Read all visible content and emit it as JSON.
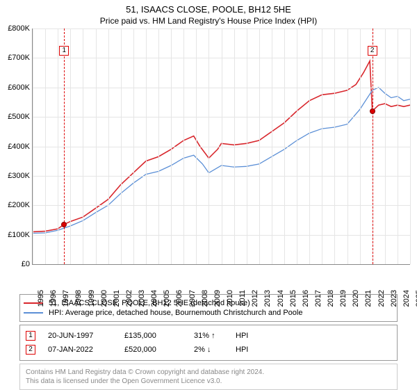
{
  "title": "51, ISAACS CLOSE, POOLE, BH12 5HE",
  "subtitle": "Price paid vs. HM Land Registry's House Price Index (HPI)",
  "chart": {
    "type": "line",
    "background_color": "#ffffff",
    "grid_color": "#e5e5e5",
    "axis_color": "#888888",
    "ylim": [
      0,
      800000
    ],
    "ytick_step": 100000,
    "yticks": [
      "£0",
      "£100K",
      "£200K",
      "£300K",
      "£400K",
      "£500K",
      "£600K",
      "£700K",
      "£800K"
    ],
    "xlim": [
      1995,
      2025
    ],
    "xticks": [
      1995,
      1996,
      1997,
      1998,
      1999,
      2000,
      2001,
      2002,
      2003,
      2004,
      2005,
      2006,
      2007,
      2008,
      2009,
      2010,
      2011,
      2012,
      2013,
      2014,
      2015,
      2016,
      2017,
      2018,
      2019,
      2020,
      2021,
      2022,
      2023,
      2024,
      2025
    ],
    "series": [
      {
        "name": "51, ISAACS CLOSE, POOLE, BH12 5HE (detached house)",
        "color": "#d8262c",
        "line_width": 1.6,
        "data": [
          [
            1995.0,
            110000
          ],
          [
            1996.0,
            112000
          ],
          [
            1997.0,
            120000
          ],
          [
            1997.5,
            135000
          ],
          [
            1998.0,
            145000
          ],
          [
            1999.0,
            160000
          ],
          [
            2000.0,
            190000
          ],
          [
            2001.0,
            220000
          ],
          [
            2002.0,
            270000
          ],
          [
            2003.0,
            310000
          ],
          [
            2004.0,
            350000
          ],
          [
            2005.0,
            365000
          ],
          [
            2006.0,
            390000
          ],
          [
            2007.0,
            420000
          ],
          [
            2007.8,
            435000
          ],
          [
            2008.3,
            400000
          ],
          [
            2009.0,
            360000
          ],
          [
            2009.7,
            390000
          ],
          [
            2010.0,
            410000
          ],
          [
            2011.0,
            405000
          ],
          [
            2012.0,
            410000
          ],
          [
            2013.0,
            420000
          ],
          [
            2014.0,
            450000
          ],
          [
            2015.0,
            480000
          ],
          [
            2016.0,
            520000
          ],
          [
            2017.0,
            555000
          ],
          [
            2018.0,
            575000
          ],
          [
            2019.0,
            580000
          ],
          [
            2020.0,
            590000
          ],
          [
            2020.7,
            610000
          ],
          [
            2021.3,
            650000
          ],
          [
            2021.8,
            690000
          ],
          [
            2022.0,
            520000
          ],
          [
            2022.5,
            540000
          ],
          [
            2023.0,
            545000
          ],
          [
            2023.5,
            535000
          ],
          [
            2024.0,
            540000
          ],
          [
            2024.5,
            535000
          ],
          [
            2025.0,
            540000
          ]
        ]
      },
      {
        "name": "HPI: Average price, detached house, Bournemouth Christchurch and Poole",
        "color": "#5b8fd6",
        "line_width": 1.3,
        "data": [
          [
            1995.0,
            105000
          ],
          [
            1996.0,
            106000
          ],
          [
            1997.0,
            115000
          ],
          [
            1998.0,
            130000
          ],
          [
            1999.0,
            148000
          ],
          [
            2000.0,
            175000
          ],
          [
            2001.0,
            200000
          ],
          [
            2002.0,
            240000
          ],
          [
            2003.0,
            275000
          ],
          [
            2004.0,
            305000
          ],
          [
            2005.0,
            315000
          ],
          [
            2006.0,
            335000
          ],
          [
            2007.0,
            360000
          ],
          [
            2007.8,
            370000
          ],
          [
            2008.5,
            340000
          ],
          [
            2009.0,
            310000
          ],
          [
            2010.0,
            335000
          ],
          [
            2011.0,
            330000
          ],
          [
            2012.0,
            332000
          ],
          [
            2013.0,
            340000
          ],
          [
            2014.0,
            365000
          ],
          [
            2015.0,
            390000
          ],
          [
            2016.0,
            420000
          ],
          [
            2017.0,
            445000
          ],
          [
            2018.0,
            460000
          ],
          [
            2019.0,
            465000
          ],
          [
            2020.0,
            475000
          ],
          [
            2021.0,
            525000
          ],
          [
            2022.0,
            590000
          ],
          [
            2022.5,
            600000
          ],
          [
            2023.0,
            580000
          ],
          [
            2023.5,
            565000
          ],
          [
            2024.0,
            570000
          ],
          [
            2024.5,
            555000
          ],
          [
            2025.0,
            560000
          ]
        ]
      }
    ],
    "markers": [
      {
        "n": "1",
        "x": 1997.5,
        "y": 135000,
        "label_y": 740000
      },
      {
        "n": "2",
        "x": 2022.0,
        "y": 520000,
        "label_y": 740000
      }
    ]
  },
  "legend": [
    {
      "color": "#d8262c",
      "label": "51, ISAACS CLOSE, POOLE, BH12 5HE (detached house)"
    },
    {
      "color": "#5b8fd6",
      "label": "HPI: Average price, detached house, Bournemouth Christchurch and Poole"
    }
  ],
  "events": [
    {
      "n": "1",
      "date": "20-JUN-1997",
      "price": "£135,000",
      "pct": "31%",
      "arrow": "↑",
      "ref": "HPI"
    },
    {
      "n": "2",
      "date": "07-JAN-2022",
      "price": "£520,000",
      "pct": "2%",
      "arrow": "↓",
      "ref": "HPI"
    }
  ],
  "footer_line1": "Contains HM Land Registry data © Crown copyright and database right 2024.",
  "footer_line2": "This data is licensed under the Open Government Licence v3.0."
}
